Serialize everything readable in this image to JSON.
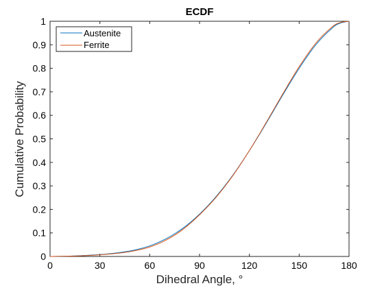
{
  "chart_data": {
    "type": "line",
    "title": "ECDF",
    "xlabel": "Dihedral Angle, °",
    "ylabel": "Cumulative Probability",
    "xlim": [
      0,
      180
    ],
    "ylim": [
      0,
      1
    ],
    "xticks": [
      0,
      30,
      60,
      90,
      120,
      150,
      180
    ],
    "yticks": [
      0,
      0.1,
      0.2,
      0.3,
      0.4,
      0.5,
      0.6,
      0.7,
      0.8,
      0.9,
      1
    ],
    "xtick_labels": [
      "0",
      "30",
      "60",
      "90",
      "120",
      "150",
      "180"
    ],
    "ytick_labels": [
      "0",
      "0.1",
      "0.2",
      "0.3",
      "0.4",
      "0.5",
      "0.6",
      "0.7",
      "0.8",
      "0.9",
      "1"
    ],
    "grid": false,
    "legend_position": "top-left",
    "series": [
      {
        "name": "Austenite",
        "color": "#0072BD",
        "x": [
          0,
          10,
          20,
          30,
          40,
          50,
          60,
          70,
          80,
          90,
          100,
          110,
          120,
          130,
          140,
          150,
          160,
          170,
          175,
          180
        ],
        "y": [
          0,
          0.001,
          0.004,
          0.008,
          0.015,
          0.026,
          0.045,
          0.076,
          0.12,
          0.18,
          0.255,
          0.345,
          0.45,
          0.565,
          0.685,
          0.8,
          0.9,
          0.972,
          0.993,
          1.0
        ]
      },
      {
        "name": "Ferrite",
        "color": "#D95319",
        "x": [
          0,
          10,
          20,
          30,
          40,
          50,
          60,
          70,
          80,
          90,
          100,
          110,
          120,
          130,
          140,
          150,
          160,
          170,
          175,
          180
        ],
        "y": [
          0,
          0.001,
          0.003,
          0.007,
          0.013,
          0.023,
          0.04,
          0.07,
          0.115,
          0.177,
          0.252,
          0.343,
          0.45,
          0.568,
          0.69,
          0.807,
          0.907,
          0.977,
          0.995,
          1.0
        ]
      }
    ]
  }
}
